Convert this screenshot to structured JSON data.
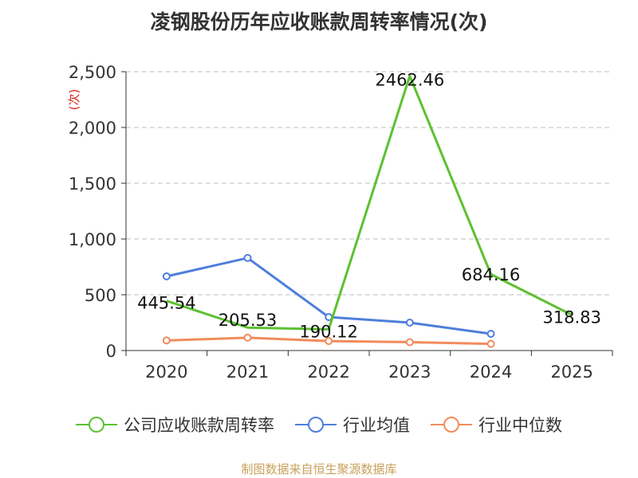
{
  "title": "凌钢股份历年应收账款周转率情况(次)",
  "source": "制图数据来自恒生聚源数据库",
  "chart_data": {
    "type": "line",
    "title": "凌钢股份历年应收账款周转率情况(次)",
    "ylabel": "(次)",
    "xlabel": "",
    "categories": [
      "2020",
      "2021",
      "2022",
      "2023",
      "2024",
      "2025"
    ],
    "ylim": [
      0,
      2500
    ],
    "yticks": [
      0,
      500,
      1000,
      1500,
      2000,
      2500
    ],
    "ytick_labels": [
      "0",
      "500",
      "1,000",
      "1,500",
      "2,000",
      "2,500"
    ],
    "grid": true,
    "legend_position": "bottom",
    "series": [
      {
        "name": "公司应收账款周转率",
        "color": "#5cc131",
        "values": [
          445.54,
          205.53,
          190.12,
          2462.46,
          684.16,
          318.83
        ],
        "labels": [
          "445.54",
          "205.53",
          "190.12",
          "2462.46",
          "684.16",
          "318.83"
        ],
        "show_labels": true,
        "markers": false
      },
      {
        "name": "行业均值",
        "color": "#4e7fdb",
        "values": [
          665,
          830,
          300,
          250,
          150,
          null
        ],
        "show_labels": false,
        "markers": true
      },
      {
        "name": "行业中位数",
        "color": "#f28b5c",
        "values": [
          90,
          115,
          85,
          75,
          60,
          null
        ],
        "show_labels": false,
        "markers": true
      }
    ]
  }
}
